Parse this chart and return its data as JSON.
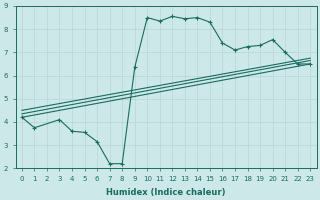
{
  "xlabel": "Humidex (Indice chaleur)",
  "ylabel": "",
  "xlim": [
    -0.5,
    23.5
  ],
  "ylim": [
    2,
    9
  ],
  "xticks": [
    0,
    1,
    2,
    3,
    4,
    5,
    6,
    7,
    8,
    9,
    10,
    11,
    12,
    13,
    14,
    15,
    16,
    17,
    18,
    19,
    20,
    21,
    22,
    23
  ],
  "yticks": [
    2,
    3,
    4,
    5,
    6,
    7,
    8,
    9
  ],
  "bg_color": "#cce8e8",
  "line_color": "#1a6b60",
  "grid_color": "#b8d4d4",
  "line_main": {
    "x": [
      0,
      1,
      3,
      4,
      5,
      6,
      7,
      8,
      9,
      10,
      11,
      12,
      13,
      14,
      15,
      16,
      17,
      18,
      19,
      20,
      21,
      22,
      23
    ],
    "y": [
      4.2,
      3.75,
      4.1,
      3.6,
      3.55,
      3.15,
      2.2,
      2.2,
      6.35,
      8.5,
      8.35,
      8.55,
      8.45,
      8.5,
      8.3,
      7.4,
      7.1,
      7.25,
      7.3,
      7.55,
      7.0,
      6.5,
      6.5
    ]
  },
  "line_reg1": {
    "x": [
      0,
      23
    ],
    "y": [
      4.2,
      6.5
    ]
  },
  "line_reg2": {
    "x": [
      0,
      23
    ],
    "y": [
      4.35,
      6.65
    ]
  },
  "line_reg3": {
    "x": [
      0,
      23
    ],
    "y": [
      4.5,
      6.75
    ]
  }
}
